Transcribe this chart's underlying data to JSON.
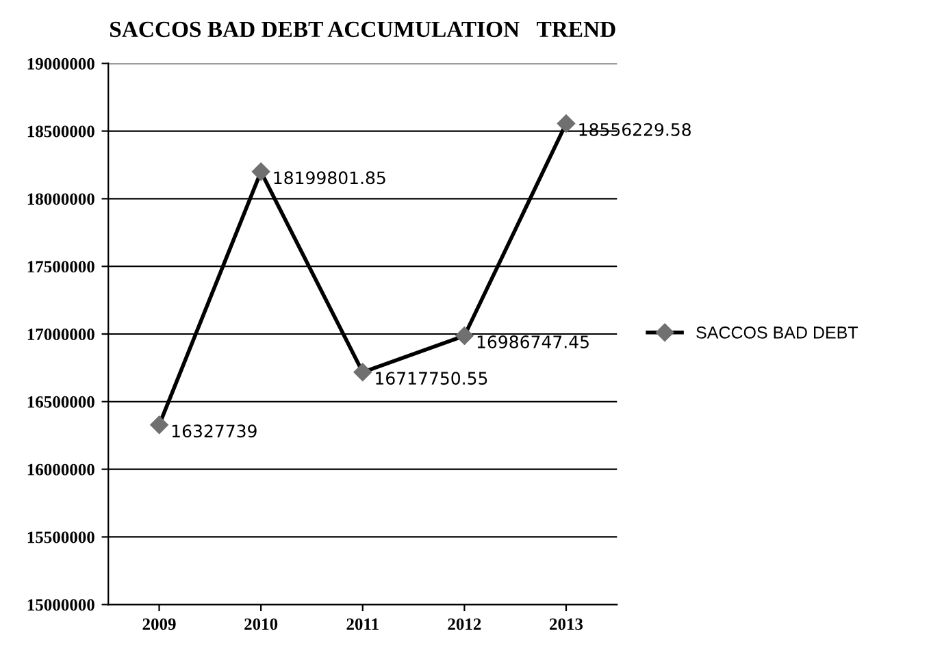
{
  "chart_data": {
    "type": "line",
    "title": "SACCOS BAD DEBT ACCUMULATION   TREND",
    "categories": [
      "2009",
      "2010",
      "2011",
      "2012",
      "2013"
    ],
    "series": [
      {
        "name": "SACCOS BAD DEBT",
        "color": "#000000",
        "values": [
          16327739,
          18199801.85,
          16717750.55,
          16986747.45,
          18556229.58
        ]
      }
    ],
    "ylim": [
      15000000,
      19000000
    ],
    "yticks": [
      15000000,
      15500000,
      16000000,
      16500000,
      17000000,
      17500000,
      18000000,
      18500000,
      19000000
    ],
    "grid": "y",
    "legend": "right",
    "marker": "diamond",
    "data_labels": true
  }
}
